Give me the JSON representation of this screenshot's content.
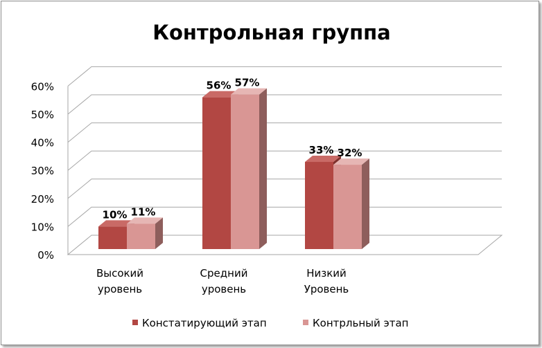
{
  "chart_data": {
    "type": "bar",
    "style": "3d-clustered-column",
    "title": "Контрольная группа",
    "categories": [
      [
        "Высокий",
        "уровень"
      ],
      [
        "Средний",
        "уровень"
      ],
      [
        "Низкий",
        "Уровень"
      ]
    ],
    "series": [
      {
        "name": "Констатирующий этап",
        "values": [
          10,
          56,
          33
        ],
        "labels": [
          "10%",
          "56%",
          "33%"
        ],
        "color": "#b24743",
        "side_color": "#7e302c",
        "top_color": "#c96a66"
      },
      {
        "name": "Контрльный этап",
        "values": [
          11,
          57,
          32
        ],
        "labels": [
          "11%",
          "57%",
          "32%"
        ],
        "color": "#d99694",
        "side_color": "#8e5e5c",
        "top_color": "#e6b6b4"
      }
    ],
    "y_ticks": [
      "0%",
      "10%",
      "20%",
      "30%",
      "40%",
      "50%",
      "60%"
    ],
    "ylim": [
      0,
      60
    ],
    "grid": true,
    "legend_position": "bottom"
  }
}
